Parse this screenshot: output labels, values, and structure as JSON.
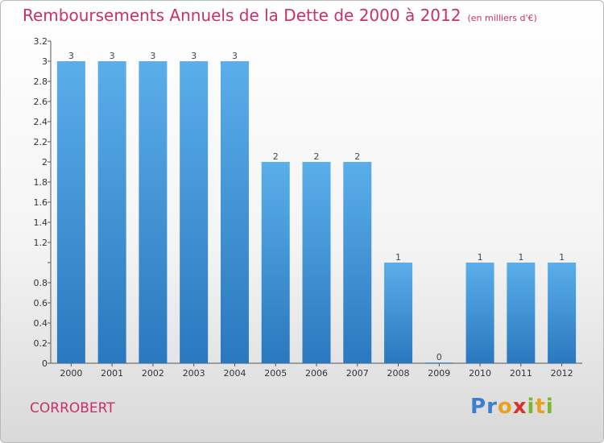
{
  "header": {
    "title": "Remboursements Annuels de la Dette de 2000 à 2012",
    "unit": "(en milliers d'€)"
  },
  "footer": {
    "town": "CORROBERT",
    "logo": "Proxiti"
  },
  "colors": {
    "title": "#c8306a",
    "bar_top": "#5aaee9",
    "bar_bottom": "#2a78bf"
  },
  "chart_data": {
    "type": "bar",
    "title": "Remboursements Annuels de la Dette de 2000 à 2012",
    "xlabel": "",
    "ylabel": "",
    "categories": [
      "2000",
      "2001",
      "2002",
      "2003",
      "2004",
      "2005",
      "2006",
      "2007",
      "2008",
      "2009",
      "2010",
      "2011",
      "2012"
    ],
    "values": [
      3,
      3,
      3,
      3,
      3,
      2,
      2,
      2,
      1,
      0,
      1,
      1,
      1
    ],
    "data_labels": [
      "3",
      "3",
      "3",
      "3",
      "3",
      "2",
      "2",
      "2",
      "1",
      "0",
      "1",
      "1",
      "1"
    ],
    "yticks": [
      0,
      0.2,
      0.4,
      0.6,
      0.8,
      1,
      1.2,
      1.4,
      1.6,
      1.8,
      2,
      2.2,
      2.4,
      2.6,
      2.8,
      3,
      3.2
    ],
    "ytick_labels": [
      "0",
      "0.2",
      "0.4",
      "0.6",
      "0.8",
      "",
      "1.2",
      "1.4",
      "1.6",
      "1.8",
      "2",
      "2.2",
      "2.4",
      "2.6",
      "2.8",
      "3",
      "3.2"
    ],
    "ylim": [
      0,
      3.2
    ],
    "grid": false,
    "legend": "none"
  }
}
